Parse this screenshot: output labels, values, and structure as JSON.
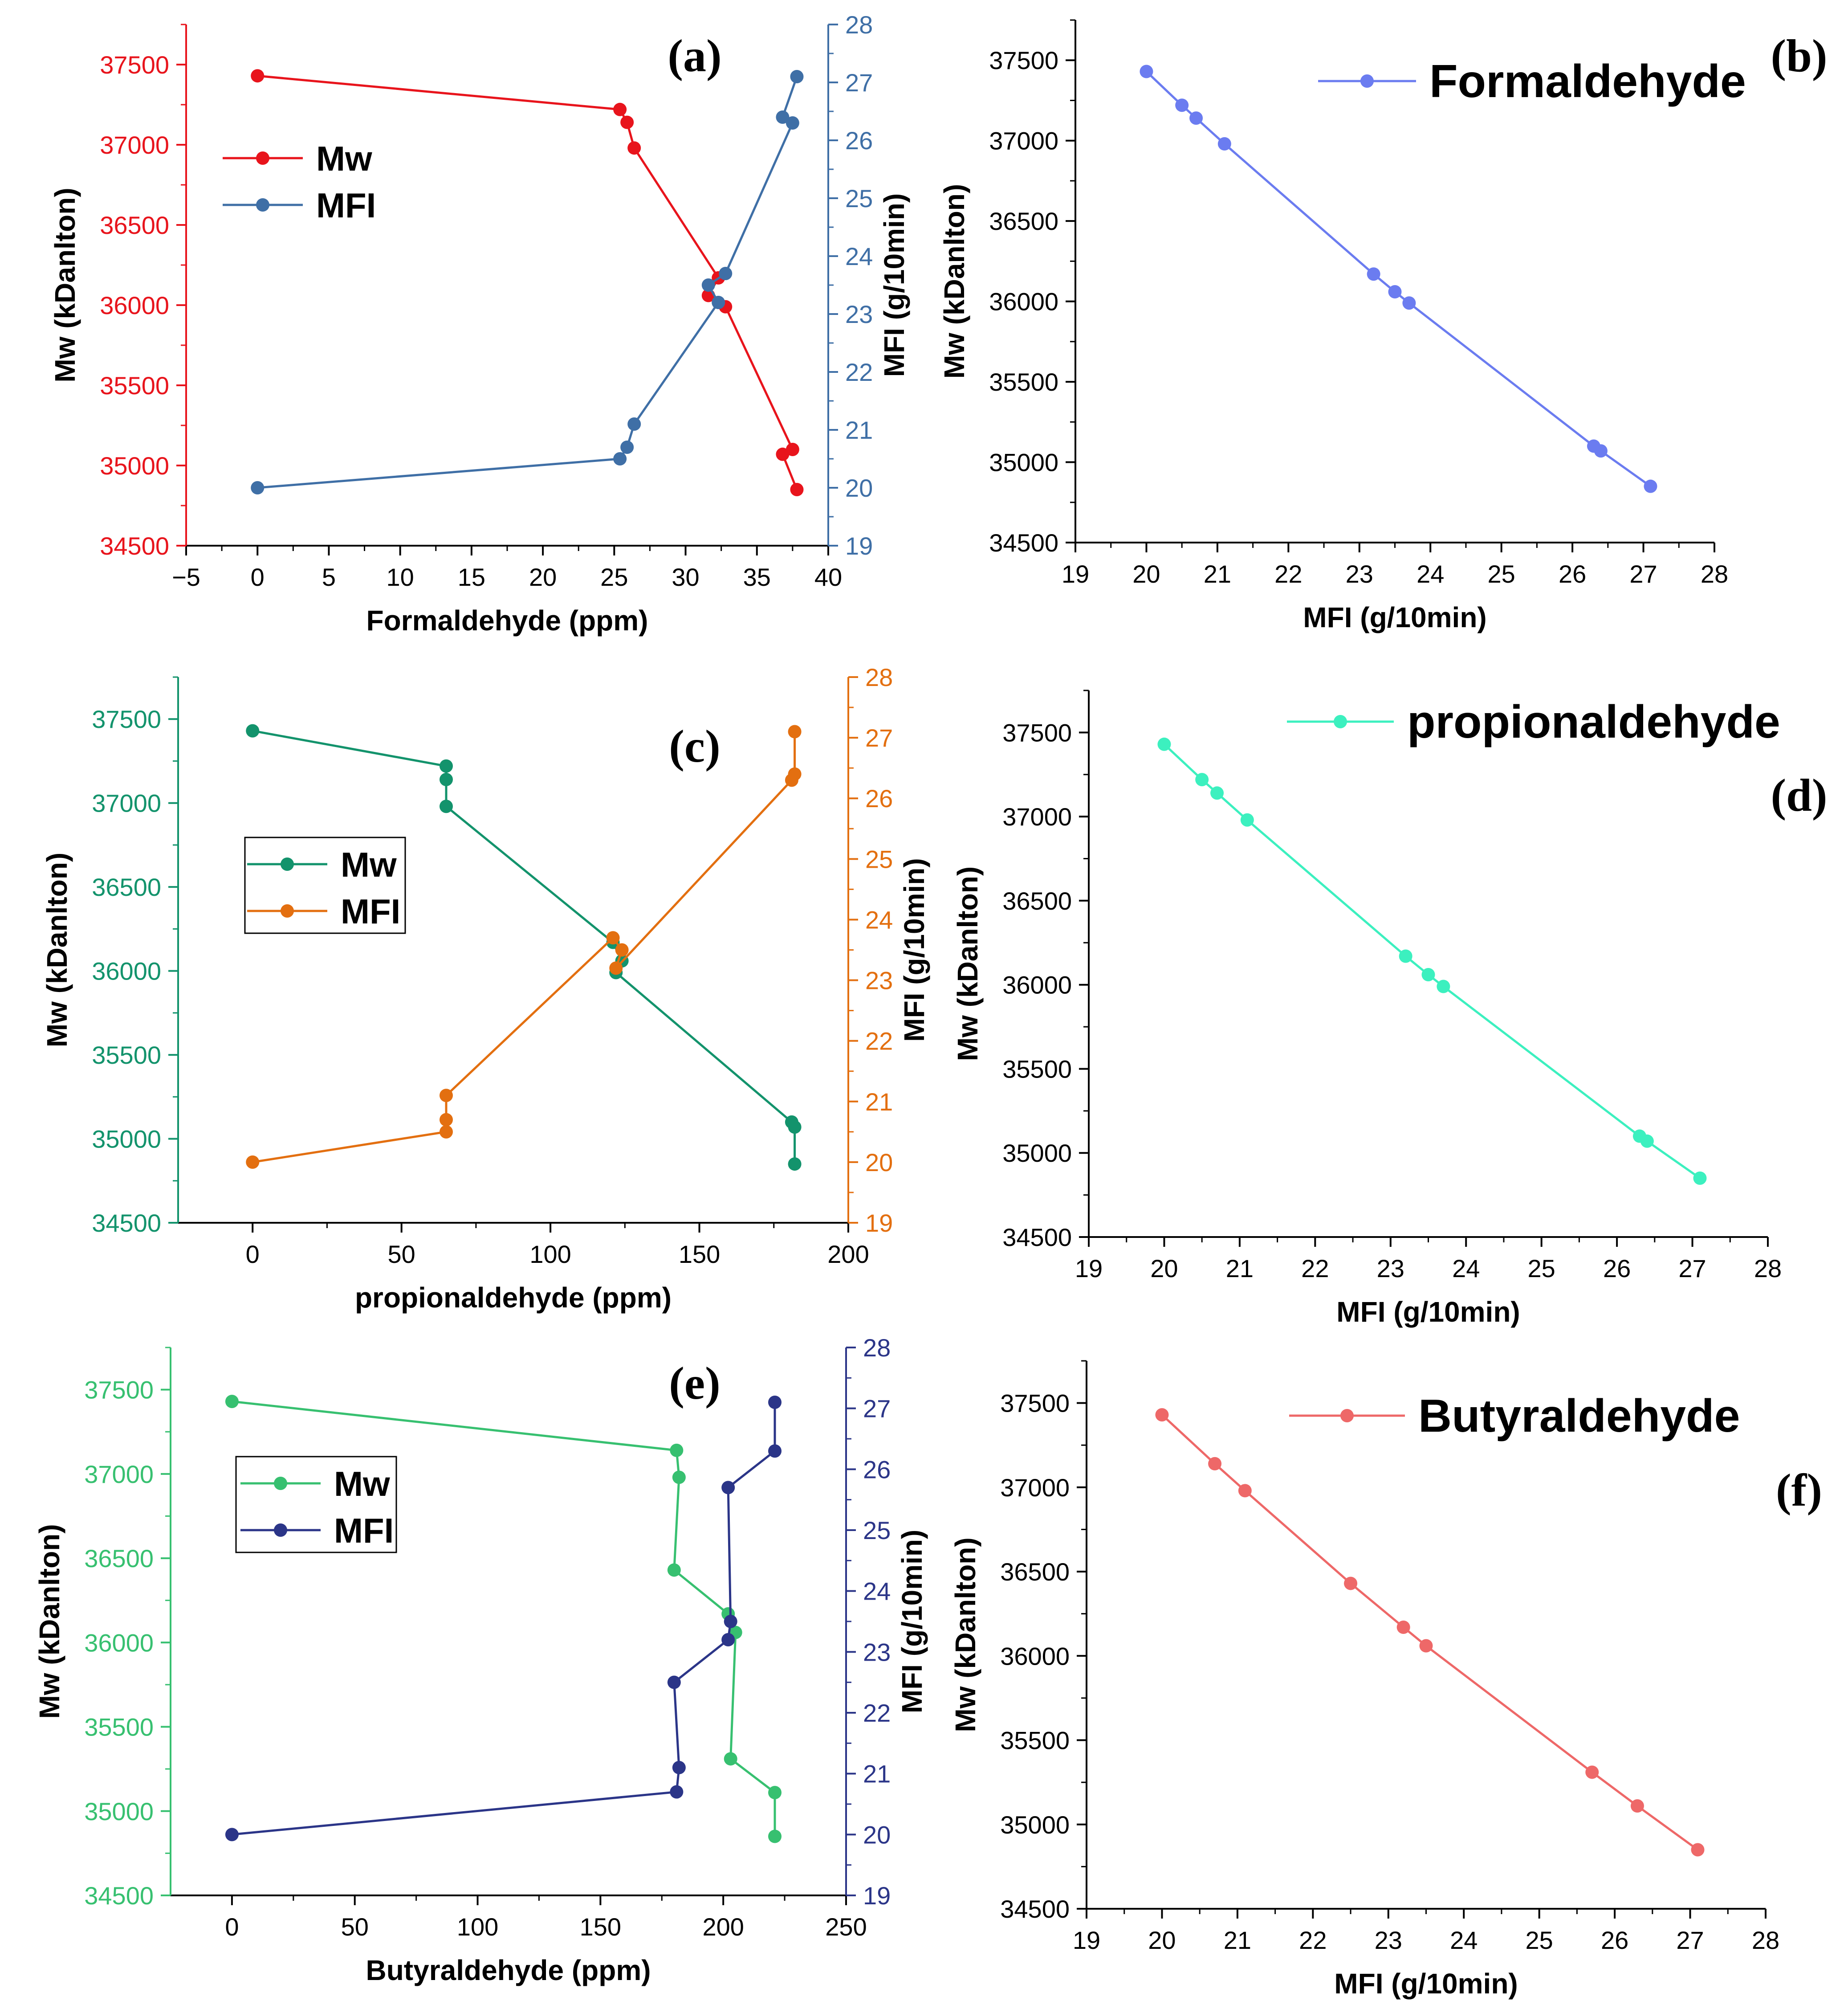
{
  "colors": {
    "a_mw": "#e8141c",
    "a_mfi": "#3f6fa6",
    "c_mw": "#13936c",
    "c_mfi": "#e36f10",
    "e_mw": "#37c070",
    "e_mfi": "#2b3588",
    "b_line": "#6b7cf0",
    "d_line": "#3cf0bf",
    "f_line": "#ee6868"
  },
  "chart_data": [
    {
      "id": "a",
      "type": "line",
      "panel_label": "(a)",
      "xlabel": "Formaldehyde (ppm)",
      "ylabel": "Mw (kDanlton)",
      "y2label": "MFI (g/10min)",
      "xlim": [
        -5,
        40
      ],
      "xticks": [
        -5,
        0,
        5,
        10,
        15,
        20,
        25,
        30,
        35,
        40
      ],
      "xtick_labels": [
        "−5",
        "0",
        "5",
        "10",
        "15",
        "20",
        "25",
        "30",
        "35",
        "40"
      ],
      "ylim": [
        34500,
        37750
      ],
      "yticks": [
        34500,
        35000,
        35500,
        36000,
        36500,
        37000,
        37500
      ],
      "ytick_labels": [
        "34500",
        "35000",
        "35500",
        "36000",
        "36500",
        "37000",
        "37500"
      ],
      "y2lim": [
        19,
        28
      ],
      "y2ticks": [
        19,
        20,
        21,
        22,
        23,
        24,
        25,
        26,
        27,
        28
      ],
      "y2tick_labels": [
        "19",
        "20",
        "21",
        "22",
        "23",
        "24",
        "25",
        "26",
        "27",
        "28"
      ],
      "legend_box": false,
      "series": [
        {
          "name": "Mw",
          "axis": "left",
          "color_key": "a_mw",
          "x": [
            0,
            25.4,
            25.9,
            26.4,
            32.3,
            31.6,
            32.8,
            37.5,
            36.8,
            37.8
          ],
          "y": [
            37430,
            37220,
            37140,
            36980,
            36170,
            36060,
            35990,
            35100,
            35070,
            34850
          ]
        },
        {
          "name": "MFI",
          "axis": "right",
          "color_key": "a_mfi",
          "x": [
            0,
            25.4,
            25.9,
            26.4,
            32.3,
            31.6,
            32.8,
            37.5,
            36.8,
            37.8
          ],
          "y": [
            20.0,
            20.5,
            20.7,
            21.1,
            23.2,
            23.5,
            23.7,
            26.3,
            26.4,
            27.1
          ]
        }
      ]
    },
    {
      "id": "b",
      "type": "line",
      "panel_label": "(b)",
      "xlabel": "MFI (g/10min)",
      "ylabel": "Mw (kDanlton)",
      "xlim": [
        19,
        28
      ],
      "xticks": [
        19,
        20,
        21,
        22,
        23,
        24,
        25,
        26,
        27,
        28
      ],
      "xtick_labels": [
        "19",
        "20",
        "21",
        "22",
        "23",
        "24",
        "25",
        "26",
        "27",
        "28"
      ],
      "ylim": [
        34500,
        37750
      ],
      "yticks": [
        34500,
        35000,
        35500,
        36000,
        36500,
        37000,
        37500
      ],
      "ytick_labels": [
        "34500",
        "35000",
        "35500",
        "36000",
        "36500",
        "37000",
        "37500"
      ],
      "series": [
        {
          "name": "Formaldehyde",
          "axis": "left",
          "color_key": "b_line",
          "x": [
            20.0,
            20.5,
            20.7,
            21.1,
            23.2,
            23.5,
            23.7,
            26.3,
            26.4,
            27.1
          ],
          "y": [
            37430,
            37220,
            37140,
            36980,
            36170,
            36060,
            35990,
            35100,
            35070,
            34850
          ]
        }
      ]
    },
    {
      "id": "c",
      "type": "line",
      "panel_label": "(c)",
      "xlabel": "propionaldehyde (ppm)",
      "ylabel": "Mw (kDanlton)",
      "y2label": "MFI (g/10min)",
      "xlim": [
        -25,
        200
      ],
      "xticks": [
        0,
        50,
        100,
        150,
        200
      ],
      "xtick_labels": [
        "0",
        "50",
        "100",
        "150",
        "200"
      ],
      "ylim": [
        34500,
        37750
      ],
      "yticks": [
        34500,
        35000,
        35500,
        36000,
        36500,
        37000,
        37500
      ],
      "ytick_labels": [
        "34500",
        "35000",
        "35500",
        "36000",
        "36500",
        "37000",
        "37500"
      ],
      "y2lim": [
        19,
        28
      ],
      "y2ticks": [
        19,
        20,
        21,
        22,
        23,
        24,
        25,
        26,
        27,
        28
      ],
      "y2tick_labels": [
        "19",
        "20",
        "21",
        "22",
        "23",
        "24",
        "25",
        "26",
        "27",
        "28"
      ],
      "legend_box": true,
      "series": [
        {
          "name": "Mw",
          "axis": "left",
          "color_key": "c_mw",
          "x": [
            0,
            65,
            65,
            65,
            121,
            124,
            122,
            181,
            182,
            182
          ],
          "y": [
            37430,
            37220,
            37140,
            36980,
            36170,
            36060,
            35990,
            35100,
            35070,
            34850
          ]
        },
        {
          "name": "MFI",
          "axis": "right",
          "color_key": "c_mfi",
          "x": [
            0,
            65,
            65,
            65,
            121,
            124,
            122,
            181,
            182,
            182
          ],
          "y": [
            20.0,
            20.5,
            20.7,
            21.1,
            23.7,
            23.5,
            23.2,
            26.3,
            26.4,
            27.1
          ]
        }
      ]
    },
    {
      "id": "d",
      "type": "line",
      "panel_label": "(d)",
      "xlabel": "MFI (g/10min)",
      "ylabel": "Mw (kDanlton)",
      "xlim": [
        19,
        28
      ],
      "xticks": [
        19,
        20,
        21,
        22,
        23,
        24,
        25,
        26,
        27,
        28
      ],
      "xtick_labels": [
        "19",
        "20",
        "21",
        "22",
        "23",
        "24",
        "25",
        "26",
        "27",
        "28"
      ],
      "ylim": [
        34500,
        37750
      ],
      "yticks": [
        34500,
        35000,
        35500,
        36000,
        36500,
        37000,
        37500
      ],
      "ytick_labels": [
        "34500",
        "35000",
        "35500",
        "36000",
        "36500",
        "37000",
        "37500"
      ],
      "series": [
        {
          "name": "propionaldehyde",
          "axis": "left",
          "color_key": "d_line",
          "x": [
            20.0,
            20.5,
            20.7,
            21.1,
            23.2,
            23.5,
            23.7,
            26.3,
            26.4,
            27.1
          ],
          "y": [
            37430,
            37220,
            37140,
            36980,
            36170,
            36060,
            35990,
            35100,
            35070,
            34850
          ]
        }
      ]
    },
    {
      "id": "e",
      "type": "line",
      "panel_label": "(e)",
      "xlabel": "Butyraldehyde (ppm)",
      "ylabel": "Mw (kDanlton)",
      "y2label": "MFI (g/10min)",
      "xlim": [
        -25,
        250
      ],
      "xticks": [
        0,
        50,
        100,
        150,
        200,
        250
      ],
      "xtick_labels": [
        "0",
        "50",
        "100",
        "150",
        "200",
        "250"
      ],
      "ylim": [
        34500,
        37750
      ],
      "yticks": [
        34500,
        35000,
        35500,
        36000,
        36500,
        37000,
        37500
      ],
      "ytick_labels": [
        "34500",
        "35000",
        "35500",
        "36000",
        "36500",
        "37000",
        "37500"
      ],
      "y2lim": [
        19,
        28
      ],
      "y2ticks": [
        19,
        20,
        21,
        22,
        23,
        24,
        25,
        26,
        27,
        28
      ],
      "y2tick_labels": [
        "19",
        "20",
        "21",
        "22",
        "23",
        "24",
        "25",
        "26",
        "27",
        "28"
      ],
      "legend_box": true,
      "series": [
        {
          "name": "Mw",
          "axis": "left",
          "color_key": "e_mw",
          "x": [
            0,
            181,
            182,
            180,
            202,
            205,
            203,
            221,
            221
          ],
          "y": [
            37430,
            37140,
            36980,
            36430,
            36170,
            36060,
            35310,
            35110,
            34850
          ]
        },
        {
          "name": "MFI",
          "axis": "right",
          "color_key": "e_mfi",
          "x": [
            0,
            181,
            182,
            180,
            202,
            203,
            202,
            221,
            221
          ],
          "y": [
            20.0,
            20.7,
            21.1,
            22.5,
            23.2,
            23.5,
            25.7,
            26.3,
            27.1
          ]
        }
      ]
    },
    {
      "id": "f",
      "type": "line",
      "panel_label": "(f)",
      "xlabel": "MFI (g/10min)",
      "ylabel": "Mw (kDanlton)",
      "xlim": [
        19,
        28
      ],
      "xticks": [
        19,
        20,
        21,
        22,
        23,
        24,
        25,
        26,
        27,
        28
      ],
      "xtick_labels": [
        "19",
        "20",
        "21",
        "22",
        "23",
        "24",
        "25",
        "26",
        "27",
        "28"
      ],
      "ylim": [
        34500,
        37750
      ],
      "yticks": [
        34500,
        35000,
        35500,
        36000,
        36500,
        37000,
        37500
      ],
      "ytick_labels": [
        "34500",
        "35000",
        "35500",
        "36000",
        "36500",
        "37000",
        "37500"
      ],
      "series": [
        {
          "name": "Butyraldehyde",
          "axis": "left",
          "color_key": "f_line",
          "x": [
            20.0,
            20.7,
            21.1,
            22.5,
            23.2,
            23.5,
            25.7,
            26.3,
            27.1
          ],
          "y": [
            37430,
            37140,
            36980,
            36430,
            36170,
            36060,
            35310,
            35110,
            34850
          ]
        }
      ]
    }
  ]
}
